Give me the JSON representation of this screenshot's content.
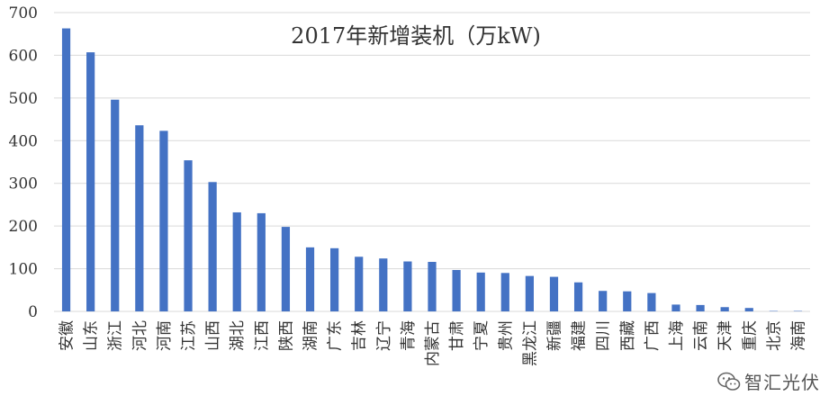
{
  "chart_data": {
    "type": "bar",
    "title": "2017年新增装机（万kW)",
    "xlabel": "",
    "ylabel": "",
    "ylim": [
      0,
      700
    ],
    "yticks": [
      0,
      100,
      200,
      300,
      400,
      500,
      600,
      700
    ],
    "grid": true,
    "legend": "none",
    "bar_color": "#4472C4",
    "grid_color": "#d9d9d9",
    "categories": [
      "安徽",
      "山东",
      "浙江",
      "河北",
      "河南",
      "江苏",
      "山西",
      "湖北",
      "江西",
      "陕西",
      "湖南",
      "广东",
      "吉林",
      "辽宁",
      "青海",
      "内蒙古",
      "甘肃",
      "宁夏",
      "贵州",
      "黑龙江",
      "新疆",
      "福建",
      "四川",
      "西藏",
      "广西",
      "上海",
      "云南",
      "天津",
      "重庆",
      "北京",
      "海南"
    ],
    "values": [
      663,
      607,
      496,
      436,
      423,
      354,
      303,
      232,
      230,
      198,
      150,
      148,
      128,
      124,
      117,
      116,
      97,
      91,
      90,
      83,
      81,
      68,
      48,
      47,
      43,
      16,
      15,
      10,
      8,
      1,
      1
    ]
  },
  "watermark": {
    "icon": "wechat-icon",
    "text": "智汇光伏"
  }
}
